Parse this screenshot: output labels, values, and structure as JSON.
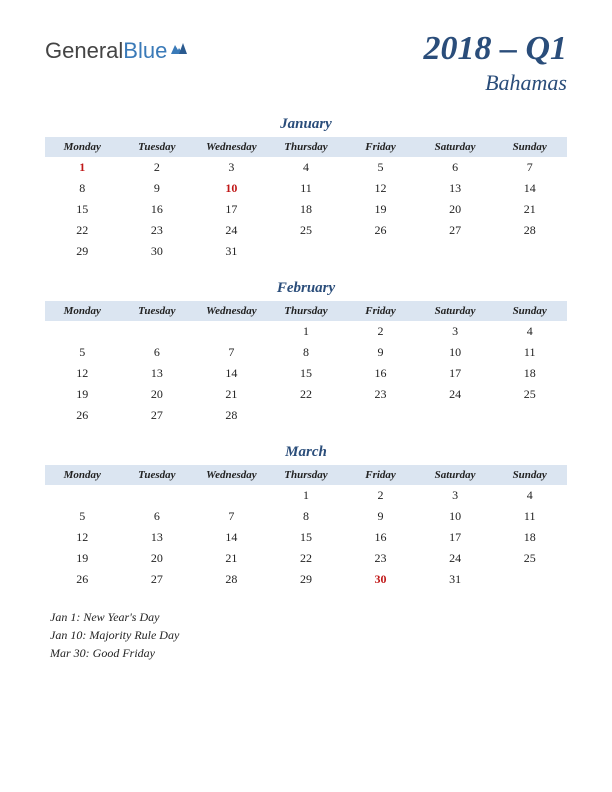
{
  "logo": {
    "part1": "General",
    "part2": "Blue"
  },
  "title": {
    "main": "2018 – Q1",
    "sub": "Bahamas"
  },
  "dayHeaders": [
    "Monday",
    "Tuesday",
    "Wednesday",
    "Thursday",
    "Friday",
    "Saturday",
    "Sunday"
  ],
  "colors": {
    "headerBg": "#dbe5f1",
    "titleColor": "#2a4d7a",
    "holidayColor": "#c01818",
    "textColor": "#222222",
    "background": "#ffffff"
  },
  "months": [
    {
      "name": "January",
      "weeks": [
        [
          {
            "d": "1",
            "h": true
          },
          {
            "d": "2"
          },
          {
            "d": "3"
          },
          {
            "d": "4"
          },
          {
            "d": "5"
          },
          {
            "d": "6"
          },
          {
            "d": "7"
          }
        ],
        [
          {
            "d": "8"
          },
          {
            "d": "9"
          },
          {
            "d": "10",
            "h": true
          },
          {
            "d": "11"
          },
          {
            "d": "12"
          },
          {
            "d": "13"
          },
          {
            "d": "14"
          }
        ],
        [
          {
            "d": "15"
          },
          {
            "d": "16"
          },
          {
            "d": "17"
          },
          {
            "d": "18"
          },
          {
            "d": "19"
          },
          {
            "d": "20"
          },
          {
            "d": "21"
          }
        ],
        [
          {
            "d": "22"
          },
          {
            "d": "23"
          },
          {
            "d": "24"
          },
          {
            "d": "25"
          },
          {
            "d": "26"
          },
          {
            "d": "27"
          },
          {
            "d": "28"
          }
        ],
        [
          {
            "d": "29"
          },
          {
            "d": "30"
          },
          {
            "d": "31"
          },
          {
            "d": ""
          },
          {
            "d": ""
          },
          {
            "d": ""
          },
          {
            "d": ""
          }
        ]
      ]
    },
    {
      "name": "February",
      "weeks": [
        [
          {
            "d": ""
          },
          {
            "d": ""
          },
          {
            "d": ""
          },
          {
            "d": "1"
          },
          {
            "d": "2"
          },
          {
            "d": "3"
          },
          {
            "d": "4"
          }
        ],
        [
          {
            "d": "5"
          },
          {
            "d": "6"
          },
          {
            "d": "7"
          },
          {
            "d": "8"
          },
          {
            "d": "9"
          },
          {
            "d": "10"
          },
          {
            "d": "11"
          }
        ],
        [
          {
            "d": "12"
          },
          {
            "d": "13"
          },
          {
            "d": "14"
          },
          {
            "d": "15"
          },
          {
            "d": "16"
          },
          {
            "d": "17"
          },
          {
            "d": "18"
          }
        ],
        [
          {
            "d": "19"
          },
          {
            "d": "20"
          },
          {
            "d": "21"
          },
          {
            "d": "22"
          },
          {
            "d": "23"
          },
          {
            "d": "24"
          },
          {
            "d": "25"
          }
        ],
        [
          {
            "d": "26"
          },
          {
            "d": "27"
          },
          {
            "d": "28"
          },
          {
            "d": ""
          },
          {
            "d": ""
          },
          {
            "d": ""
          },
          {
            "d": ""
          }
        ]
      ]
    },
    {
      "name": "March",
      "weeks": [
        [
          {
            "d": ""
          },
          {
            "d": ""
          },
          {
            "d": ""
          },
          {
            "d": "1"
          },
          {
            "d": "2"
          },
          {
            "d": "3"
          },
          {
            "d": "4"
          }
        ],
        [
          {
            "d": "5"
          },
          {
            "d": "6"
          },
          {
            "d": "7"
          },
          {
            "d": "8"
          },
          {
            "d": "9"
          },
          {
            "d": "10"
          },
          {
            "d": "11"
          }
        ],
        [
          {
            "d": "12"
          },
          {
            "d": "13"
          },
          {
            "d": "14"
          },
          {
            "d": "15"
          },
          {
            "d": "16"
          },
          {
            "d": "17"
          },
          {
            "d": "18"
          }
        ],
        [
          {
            "d": "19"
          },
          {
            "d": "20"
          },
          {
            "d": "21"
          },
          {
            "d": "22"
          },
          {
            "d": "23"
          },
          {
            "d": "24"
          },
          {
            "d": "25"
          }
        ],
        [
          {
            "d": "26"
          },
          {
            "d": "27"
          },
          {
            "d": "28"
          },
          {
            "d": "29"
          },
          {
            "d": "30",
            "h": true
          },
          {
            "d": "31"
          },
          {
            "d": ""
          }
        ]
      ]
    }
  ],
  "holidays": [
    "Jan 1: New Year's Day",
    "Jan 10: Majority Rule Day",
    "Mar 30: Good Friday"
  ]
}
